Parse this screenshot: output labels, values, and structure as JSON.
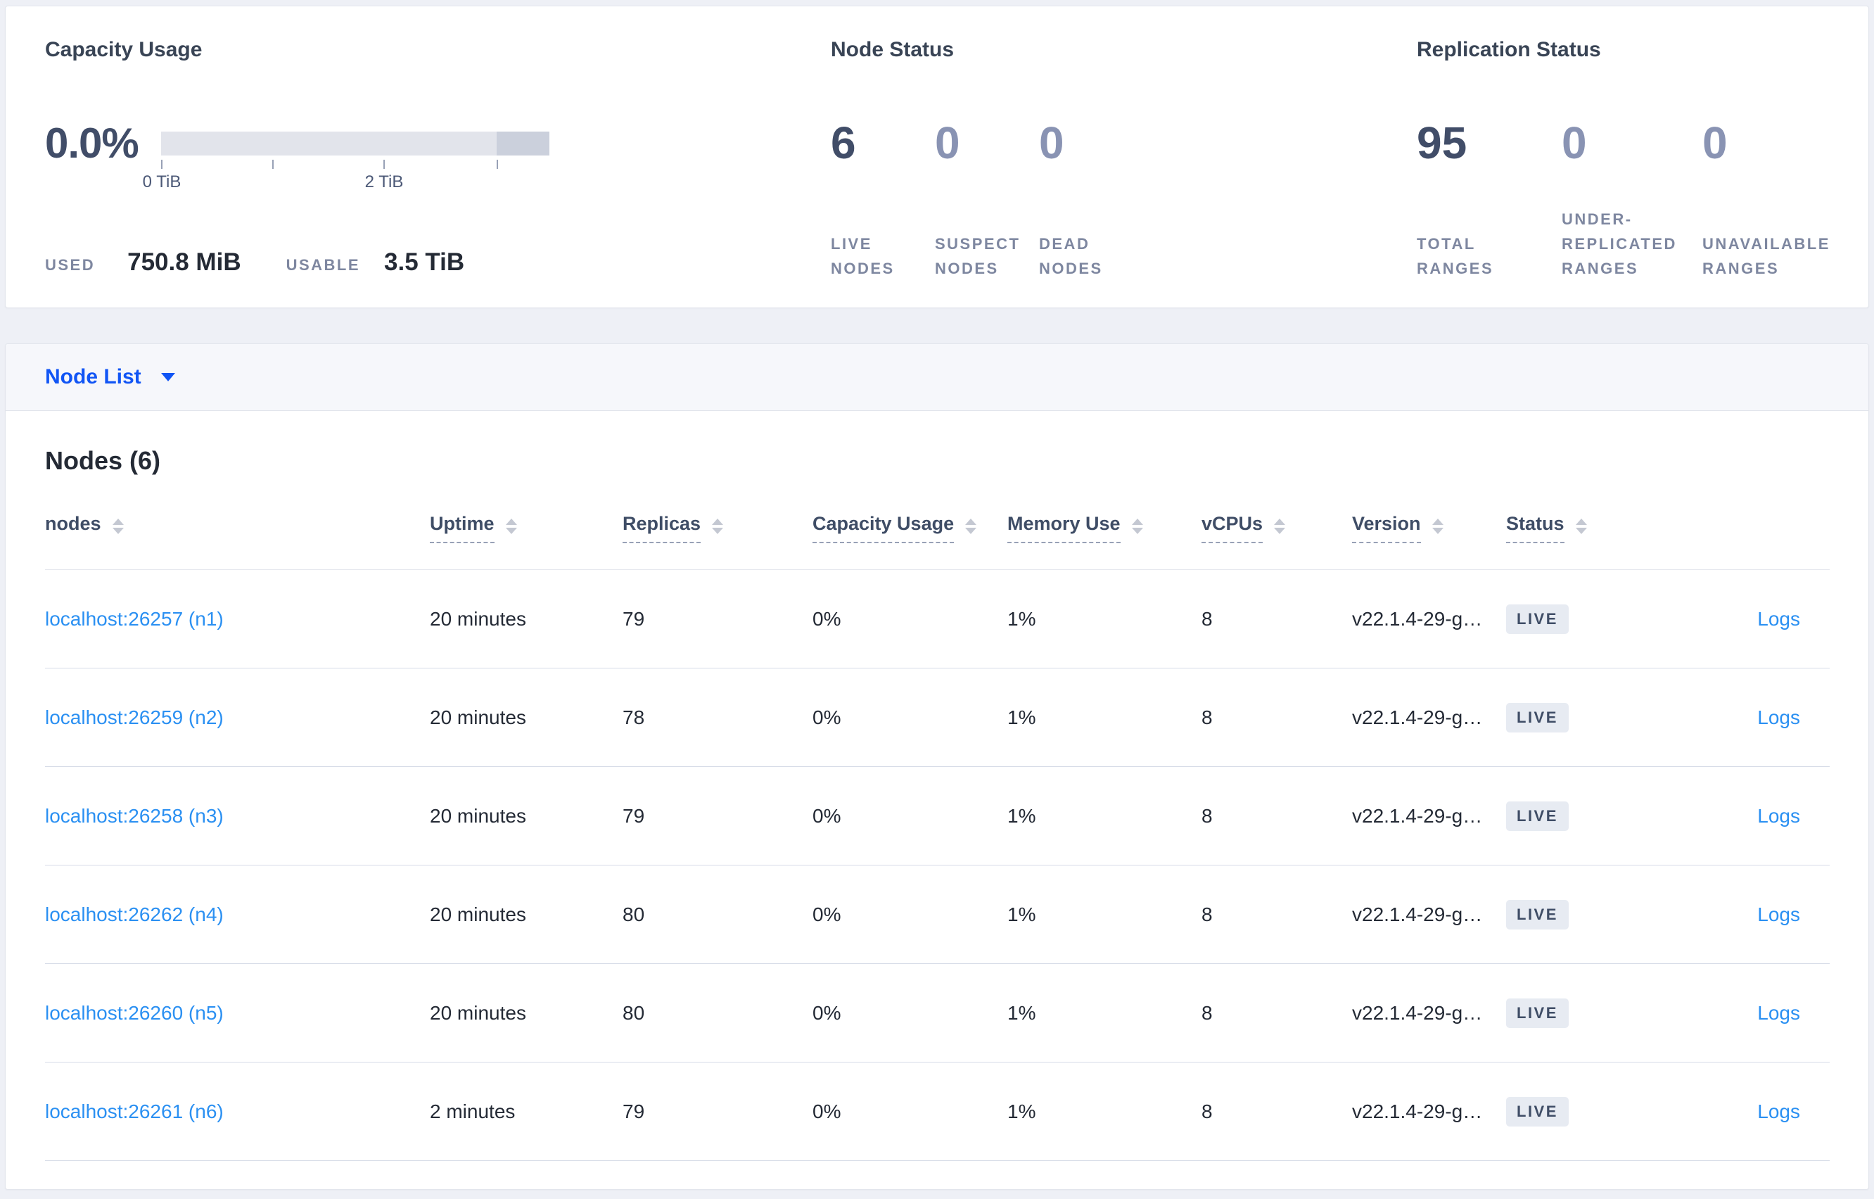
{
  "colors": {
    "page_bg": "#eef0f6",
    "panel_bg": "#ffffff",
    "node_link_blue": "#2b90f2",
    "view_selector_blue": "#1155f5",
    "stat_dark_value": "#414d68",
    "stat_muted_value": "#8993b3",
    "muted_label": "#7e87a0",
    "cell_text": "#242a35",
    "badge_bg": "#e7ebf2",
    "capacity_bar_light": "#e2e4eb",
    "capacity_bar_dark": "#cbd0dc"
  },
  "summary": {
    "capacity": {
      "title": "Capacity Usage",
      "percent": "0.0%",
      "axis_labels": [
        "0 TiB",
        "2 TiB"
      ],
      "used_label": "USED",
      "used_value": "750.8 MiB",
      "usable_label": "USABLE",
      "usable_value": "3.5 TiB"
    },
    "node_status": {
      "title": "Node Status",
      "stats": [
        {
          "value": "6",
          "label": "LIVE NODES"
        },
        {
          "value": "0",
          "label": "SUSPECT NODES"
        },
        {
          "value": "0",
          "label": "DEAD NODES"
        }
      ]
    },
    "replication_status": {
      "title": "Replication Status",
      "stats": [
        {
          "value": "95",
          "label": "TOTAL RANGES"
        },
        {
          "value": "0",
          "label": "UNDER-REPLICATED RANGES"
        },
        {
          "value": "0",
          "label": "UNAVAILABLE RANGES"
        }
      ]
    }
  },
  "view_selector": {
    "label": "Node List"
  },
  "nodes_section": {
    "title": "Nodes (6)",
    "columns": [
      {
        "label": "nodes",
        "sortable": true,
        "underlined": false
      },
      {
        "label": "Uptime",
        "sortable": true,
        "underlined": true
      },
      {
        "label": "Replicas",
        "sortable": true,
        "underlined": true
      },
      {
        "label": "Capacity Usage",
        "sortable": true,
        "underlined": true
      },
      {
        "label": "Memory Use",
        "sortable": true,
        "underlined": true
      },
      {
        "label": "vCPUs",
        "sortable": true,
        "underlined": true
      },
      {
        "label": "Version",
        "sortable": true,
        "underlined": true
      },
      {
        "label": "Status",
        "sortable": true,
        "underlined": true
      },
      {
        "label": "",
        "sortable": false,
        "underlined": false
      }
    ],
    "rows": [
      {
        "node": "localhost:26257 (n1)",
        "uptime": "20 minutes",
        "replicas": "79",
        "capacity_usage": "0%",
        "memory_use": "1%",
        "vcpus": "8",
        "version": "v22.1.4-29-g…",
        "status": "LIVE",
        "logs": "Logs"
      },
      {
        "node": "localhost:26259 (n2)",
        "uptime": "20 minutes",
        "replicas": "78",
        "capacity_usage": "0%",
        "memory_use": "1%",
        "vcpus": "8",
        "version": "v22.1.4-29-g…",
        "status": "LIVE",
        "logs": "Logs"
      },
      {
        "node": "localhost:26258 (n3)",
        "uptime": "20 minutes",
        "replicas": "79",
        "capacity_usage": "0%",
        "memory_use": "1%",
        "vcpus": "8",
        "version": "v22.1.4-29-g…",
        "status": "LIVE",
        "logs": "Logs"
      },
      {
        "node": "localhost:26262 (n4)",
        "uptime": "20 minutes",
        "replicas": "80",
        "capacity_usage": "0%",
        "memory_use": "1%",
        "vcpus": "8",
        "version": "v22.1.4-29-g…",
        "status": "LIVE",
        "logs": "Logs"
      },
      {
        "node": "localhost:26260 (n5)",
        "uptime": "20 minutes",
        "replicas": "80",
        "capacity_usage": "0%",
        "memory_use": "1%",
        "vcpus": "8",
        "version": "v22.1.4-29-g…",
        "status": "LIVE",
        "logs": "Logs"
      },
      {
        "node": "localhost:26261 (n6)",
        "uptime": "2 minutes",
        "replicas": "79",
        "capacity_usage": "0%",
        "memory_use": "1%",
        "vcpus": "8",
        "version": "v22.1.4-29-g…",
        "status": "LIVE",
        "logs": "Logs"
      }
    ]
  }
}
